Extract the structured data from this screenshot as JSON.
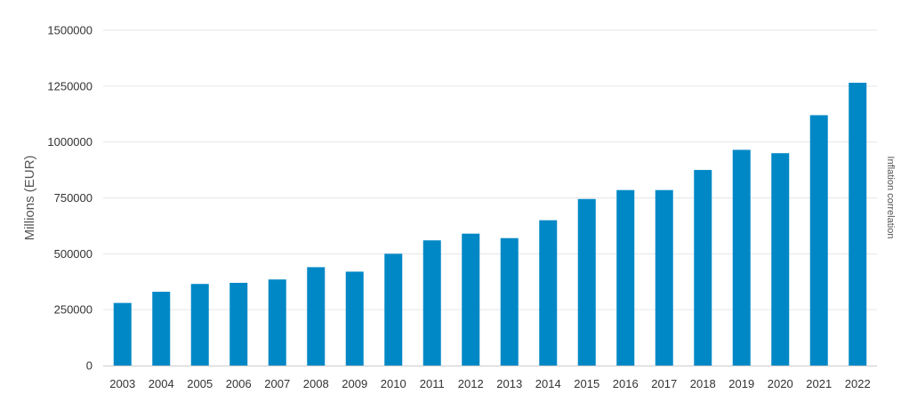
{
  "chart_data": {
    "type": "bar",
    "categories": [
      "2003",
      "2004",
      "2005",
      "2006",
      "2007",
      "2008",
      "2009",
      "2010",
      "2011",
      "2012",
      "2013",
      "2014",
      "2015",
      "2016",
      "2017",
      "2018",
      "2019",
      "2020",
      "2021",
      "2022"
    ],
    "series": [
      {
        "values": [
          280000,
          330000,
          365000,
          370000,
          385000,
          440000,
          420000,
          500000,
          560000,
          590000,
          570000,
          650000,
          745000,
          785000,
          785000,
          875000,
          965000,
          950000,
          1120000,
          1265000
        ],
        "color": "#0088c6"
      }
    ],
    "y_ticks": [
      "0",
      "250000",
      "500000",
      "750000",
      "1000000",
      "1250000",
      "1500000"
    ],
    "ylim": [
      0,
      1500000
    ],
    "ylabel": "Millions (EUR)",
    "y2label": "Inflation correlation",
    "xlabel": "",
    "title": "",
    "grid": true,
    "colors": {
      "bar": "#0088c6",
      "grid": "#e6e6e6",
      "axis": "#cccccc"
    }
  }
}
